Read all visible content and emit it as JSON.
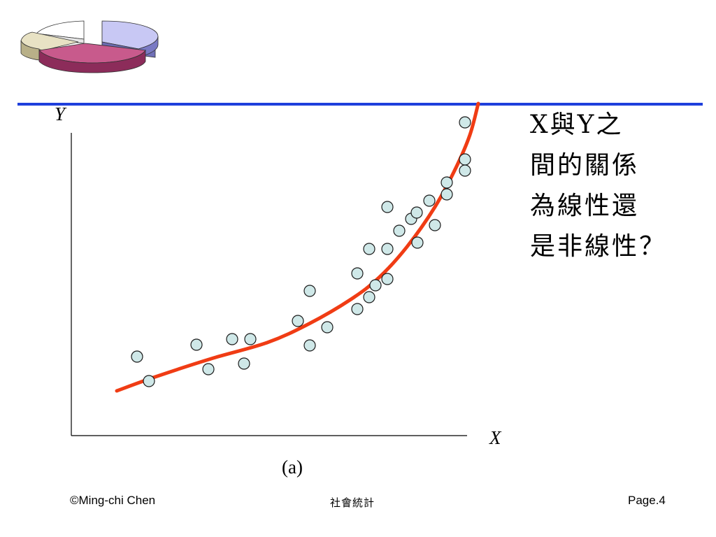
{
  "chart_data": {
    "type": "scatter",
    "xlabel": "X",
    "ylabel": "Y",
    "caption": "(a)",
    "points": [
      [
        94,
        113
      ],
      [
        111,
        78
      ],
      [
        179,
        130
      ],
      [
        196,
        95
      ],
      [
        230,
        138
      ],
      [
        247,
        103
      ],
      [
        256,
        138
      ],
      [
        324,
        164
      ],
      [
        341,
        129
      ],
      [
        341,
        207
      ],
      [
        366,
        155
      ],
      [
        409,
        181
      ],
      [
        426,
        198
      ],
      [
        409,
        232
      ],
      [
        435,
        215
      ],
      [
        452,
        224
      ],
      [
        426,
        267
      ],
      [
        452,
        267
      ],
      [
        452,
        327
      ],
      [
        469,
        293
      ],
      [
        486,
        310
      ],
      [
        494,
        319
      ],
      [
        495,
        276
      ],
      [
        512,
        336
      ],
      [
        520,
        301
      ],
      [
        537,
        362
      ],
      [
        537,
        345
      ],
      [
        563,
        395
      ],
      [
        563,
        379
      ],
      [
        563,
        448
      ]
    ],
    "fit_curve": [
      [
        65,
        64
      ],
      [
        120,
        84
      ],
      [
        200,
        110
      ],
      [
        280,
        133
      ],
      [
        340,
        160
      ],
      [
        400,
        195
      ],
      [
        440,
        226
      ],
      [
        480,
        270
      ],
      [
        520,
        327
      ],
      [
        550,
        383
      ],
      [
        570,
        430
      ],
      [
        582,
        475
      ]
    ]
  },
  "question": {
    "lines": [
      "X與Y之",
      "間的關係",
      "為線性還",
      "是非線性？"
    ]
  },
  "footer": {
    "author": "©Ming-chi Chen",
    "course": "社會統計",
    "page": "Page.4"
  },
  "colors": {
    "rule": "#1f3fdc",
    "curve": "#f03c14",
    "marker_fill": "#cfe8e8",
    "marker_stroke": "#1a1a1a"
  },
  "icons": {
    "logo": "pie-chart-3d-icon"
  }
}
